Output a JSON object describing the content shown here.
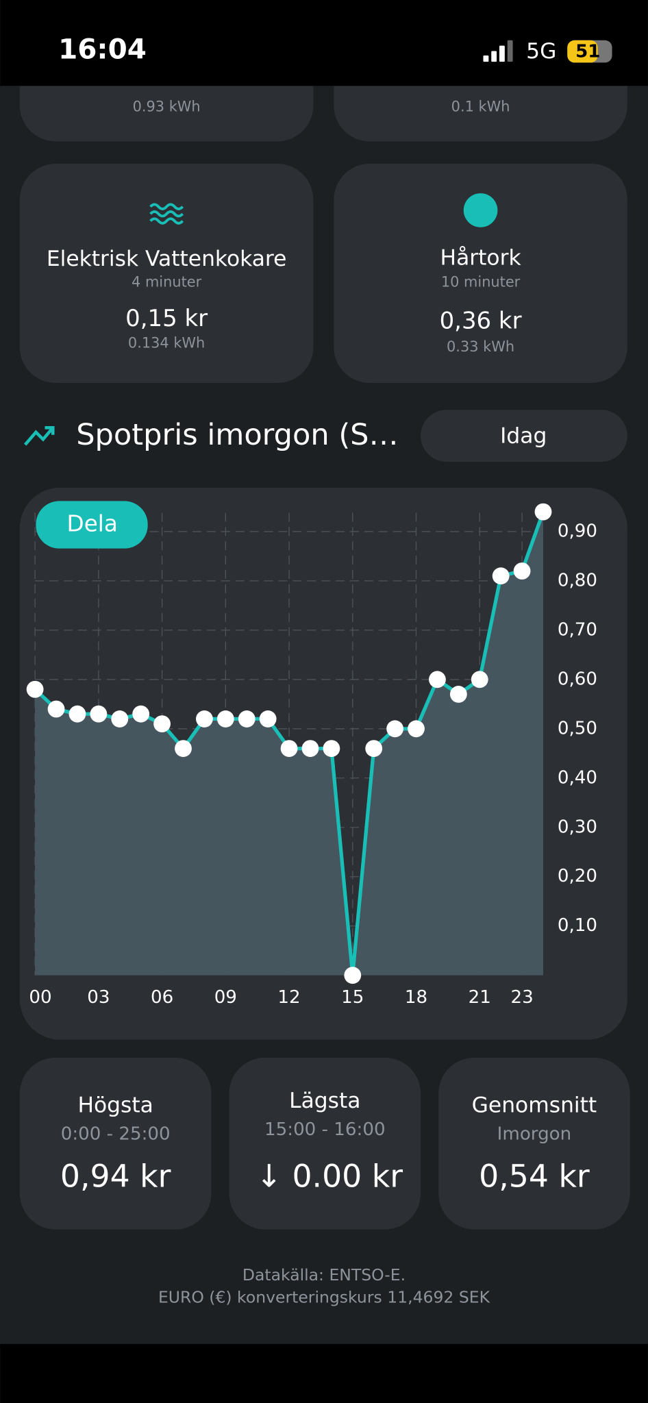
{
  "status_bar": {
    "time": "16:04",
    "network": "5G",
    "battery": "51"
  },
  "devices": [
    {
      "energy": "0.93 kWh"
    },
    {
      "energy": "0.1 kWh"
    },
    {
      "name": "Elektrisk Vattenkokare",
      "duration": "4 minuter",
      "cost": "0,15 kr",
      "energy": "0.134 kWh"
    },
    {
      "name": "Hårtork",
      "duration": "10 minuter",
      "cost": "0,36 kr",
      "energy": "0.33 kWh"
    }
  ],
  "controls": {
    "period": "Idag",
    "share": "Dela"
  },
  "chart_data": {
    "type": "line",
    "title": "Spotpris imorgon (S…",
    "x": [
      0,
      1,
      2,
      3,
      4,
      5,
      6,
      7,
      8,
      9,
      10,
      11,
      12,
      13,
      14,
      15,
      16,
      17,
      18,
      19,
      20,
      21,
      22,
      23,
      24
    ],
    "values": [
      0.58,
      0.54,
      0.53,
      0.53,
      0.52,
      0.53,
      0.51,
      0.46,
      0.52,
      0.52,
      0.52,
      0.52,
      0.46,
      0.46,
      0.46,
      0.0,
      0.46,
      0.5,
      0.5,
      0.6,
      0.57,
      0.6,
      0.81,
      0.82,
      0.94
    ],
    "color": "#19bfb7",
    "fill": "#46565f",
    "xlim": [
      0,
      24
    ],
    "ylim": [
      0,
      0.96
    ],
    "xticks": [
      {
        "value": 0,
        "label": "00"
      },
      {
        "value": 3,
        "label": "03"
      },
      {
        "value": 6,
        "label": "06"
      },
      {
        "value": 9,
        "label": "09"
      },
      {
        "value": 12,
        "label": "12"
      },
      15,
      18,
      21,
      23
    ],
    "yticks": [
      {
        "value": 0.1,
        "label": "0,10"
      },
      {
        "value": 0.2,
        "label": "0,20"
      },
      {
        "value": 0.3,
        "label": "0,30"
      },
      {
        "value": 0.4,
        "label": "0,40"
      },
      {
        "value": 0.5,
        "label": "0,50"
      },
      {
        "value": 0.6,
        "label": "0,60"
      },
      {
        "value": 0.7,
        "label": "0,70"
      },
      {
        "value": 0.8,
        "label": "0,80"
      },
      {
        "value": 0.9,
        "label": "0,90"
      }
    ],
    "grid": true
  },
  "stats": [
    {
      "title": "Högsta",
      "period": "0:00 - 25:00",
      "value": "0,94 kr"
    },
    {
      "title": "Lägsta",
      "period": "15:00 - 16:00",
      "value": "↓ 0.00 kr"
    },
    {
      "title": "Genomsnitt",
      "period": "Imorgon",
      "value": "0,54 kr"
    }
  ],
  "footer": {
    "source": "Datakälla:  ENTSO-E.",
    "rate": "EURO (€) konverteringskurs 11,4692 SEK"
  }
}
